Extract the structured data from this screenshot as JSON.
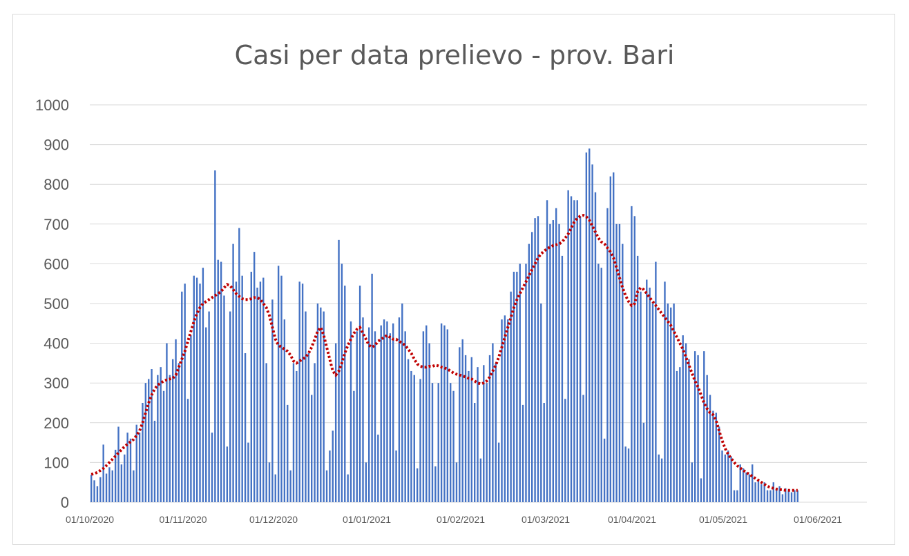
{
  "chart_data": {
    "type": "bar",
    "title": "Casi per data prelievo - prov. Bari",
    "xlabel": "",
    "ylabel": "",
    "ylim": [
      0,
      1000
    ],
    "yticks": [
      "0",
      "100",
      "200",
      "300",
      "400",
      "500",
      "600",
      "700",
      "800",
      "900",
      "1000"
    ],
    "xticks": [
      "01/10/2020",
      "01/11/2020",
      "01/12/2020",
      "01/01/2021",
      "01/02/2021",
      "01/03/2021",
      "01/04/2021",
      "01/05/2021",
      "01/06/2021"
    ],
    "x_start": "01/10/2020",
    "x_end": "12/06/2021",
    "grid": true,
    "colors": {
      "bars": "#4472c4",
      "trend": "#c00000",
      "grid": "#d9d9d9",
      "text": "#595959"
    },
    "series": [
      {
        "kind": "bar",
        "daily_values": [
          69,
          55,
          40,
          63,
          145,
          72,
          88,
          80,
          132,
          190,
          95,
          120,
          175,
          160,
          80,
          195,
          175,
          250,
          300,
          310,
          335,
          205,
          320,
          340,
          280,
          400,
          320,
          360,
          410,
          350,
          530,
          550,
          260,
          420,
          570,
          565,
          550,
          590,
          440,
          480,
          175,
          835,
          610,
          605,
          520,
          140,
          480,
          650,
          555,
          690,
          570,
          375,
          150,
          580,
          630,
          540,
          555,
          565,
          350,
          100,
          510,
          70,
          595,
          570,
          460,
          245,
          80,
          350,
          330,
          555,
          550,
          480,
          375,
          270,
          350,
          500,
          490,
          480,
          80,
          130,
          180,
          400,
          660,
          600,
          545,
          70,
          455,
          280,
          430,
          545,
          465,
          100,
          440,
          575,
          430,
          170,
          445,
          460,
          455,
          425,
          450,
          130,
          465,
          500,
          430,
          360,
          330,
          320,
          85,
          310,
          430,
          445,
          400,
          300,
          90,
          300,
          450,
          445,
          435,
          300,
          280,
          100,
          390,
          410,
          370,
          330,
          365,
          250,
          340,
          110,
          345,
          300,
          370,
          400,
          350,
          150,
          460,
          470,
          460,
          530,
          580,
          580,
          600,
          245,
          600,
          650,
          680,
          715,
          720,
          500,
          250,
          760,
          700,
          710,
          740,
          700,
          620,
          260,
          785,
          770,
          760,
          760,
          720,
          270,
          880,
          890,
          850,
          780,
          600,
          590,
          160,
          740,
          820,
          830,
          700,
          700,
          650,
          140,
          135,
          745,
          720,
          620,
          530,
          200,
          560,
          540,
          500,
          605,
          120,
          110,
          555,
          500,
          490,
          500,
          330,
          340,
          420,
          400,
          360,
          100,
          380,
          370,
          60,
          380,
          320,
          270,
          230,
          225,
          190,
          130,
          120,
          130,
          115,
          30,
          30,
          95,
          85,
          75,
          70,
          95,
          50,
          55,
          45,
          50,
          30,
          30,
          50,
          30,
          40,
          20,
          35,
          30,
          25,
          30,
          30
        ]
      },
      {
        "kind": "trend",
        "daily_values": [
          70,
          72,
          75,
          80,
          85,
          92,
          100,
          108,
          116,
          124,
          132,
          140,
          146,
          152,
          158,
          168,
          180,
          200,
          225,
          250,
          270,
          285,
          295,
          300,
          305,
          308,
          310,
          312,
          320,
          340,
          360,
          380,
          405,
          430,
          455,
          475,
          490,
          500,
          505,
          510,
          515,
          520,
          525,
          530,
          540,
          548,
          545,
          535,
          525,
          518,
          512,
          510,
          510,
          512,
          515,
          515,
          510,
          500,
          490,
          470,
          440,
          410,
          395,
          390,
          385,
          380,
          370,
          355,
          350,
          355,
          360,
          365,
          375,
          390,
          410,
          430,
          440,
          420,
          390,
          360,
          330,
          320,
          330,
          350,
          375,
          395,
          410,
          425,
          435,
          440,
          425,
          410,
          395,
          390,
          395,
          405,
          410,
          415,
          420,
          415,
          410,
          410,
          405,
          400,
          395,
          385,
          375,
          360,
          348,
          342,
          340,
          340,
          342,
          342,
          345,
          343,
          340,
          338,
          335,
          330,
          325,
          322,
          320,
          318,
          315,
          312,
          310,
          305,
          300,
          298,
          300,
          305,
          315,
          330,
          345,
          365,
          390,
          415,
          440,
          465,
          490,
          510,
          525,
          540,
          555,
          570,
          585,
          600,
          615,
          625,
          632,
          638,
          642,
          646,
          648,
          650,
          655,
          665,
          675,
          690,
          705,
          715,
          720,
          722,
          718,
          710,
          695,
          680,
          665,
          655,
          650,
          640,
          630,
          615,
          590,
          565,
          540,
          520,
          505,
          495,
          500,
          530,
          540,
          535,
          525,
          515,
          505,
          495,
          485,
          475,
          465,
          455,
          445,
          430,
          415,
          400,
          385,
          365,
          345,
          325,
          305,
          290,
          270,
          250,
          235,
          225,
          220,
          205,
          180,
          155,
          135,
          120,
          110,
          100,
          92,
          86,
          80,
          75,
          70,
          65,
          60,
          55,
          50,
          45,
          40,
          37,
          35,
          33,
          32,
          31,
          30,
          30,
          30,
          30,
          30
        ]
      }
    ]
  }
}
